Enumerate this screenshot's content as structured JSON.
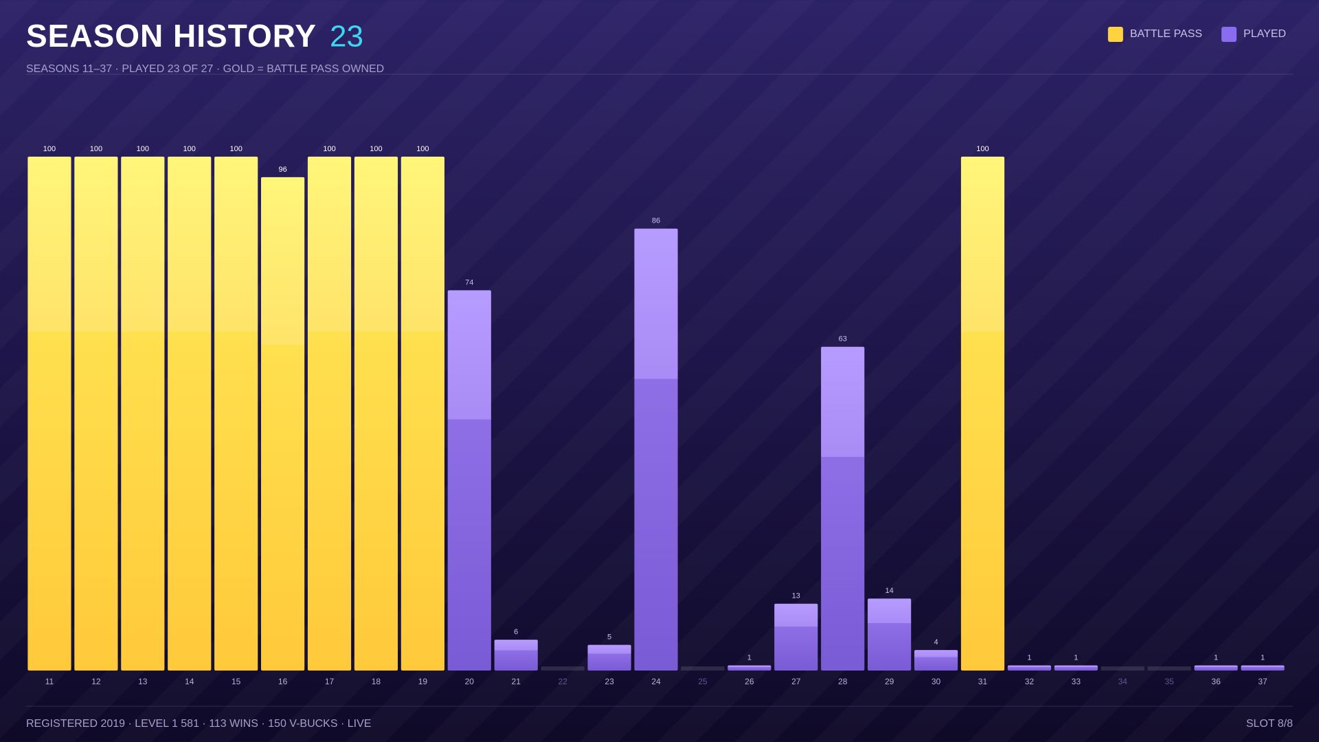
{
  "header": {
    "title": "SEASON HISTORY",
    "count": "23",
    "subtitle": "SEASONS 11–37 · PLAYED 23 OF 27 · GOLD = BATTLE PASS OWNED"
  },
  "chart_data": {
    "type": "bar",
    "legend": "top-right",
    "categories": [
      "11",
      "12",
      "13",
      "14",
      "15",
      "16",
      "17",
      "18",
      "19",
      "20",
      "21",
      "22",
      "23",
      "24",
      "25",
      "26",
      "27",
      "28",
      "29",
      "30",
      "31",
      "32",
      "33",
      "34",
      "35",
      "36",
      "37"
    ],
    "series": [
      {
        "name": "BATTLE PASS",
        "color": "#ffd23f",
        "values": [
          100,
          100,
          100,
          100,
          100,
          96,
          100,
          100,
          100,
          null,
          null,
          null,
          null,
          null,
          null,
          null,
          null,
          null,
          null,
          null,
          100,
          null,
          null,
          null,
          null,
          null,
          null
        ]
      },
      {
        "name": "PLAYED",
        "color": "#8a6cf0",
        "values": [
          null,
          null,
          null,
          null,
          null,
          null,
          null,
          null,
          null,
          74,
          6,
          null,
          5,
          86,
          null,
          1,
          13,
          63,
          14,
          4,
          null,
          1,
          1,
          null,
          null,
          1,
          1
        ]
      }
    ],
    "ylim": [
      0,
      100
    ]
  },
  "footer": {
    "stats": "REGISTERED 2019 · LEVEL 1 581 · 113 WINS · 150 V-BUCKS · LIVE",
    "slot": "SLOT 8/8"
  }
}
